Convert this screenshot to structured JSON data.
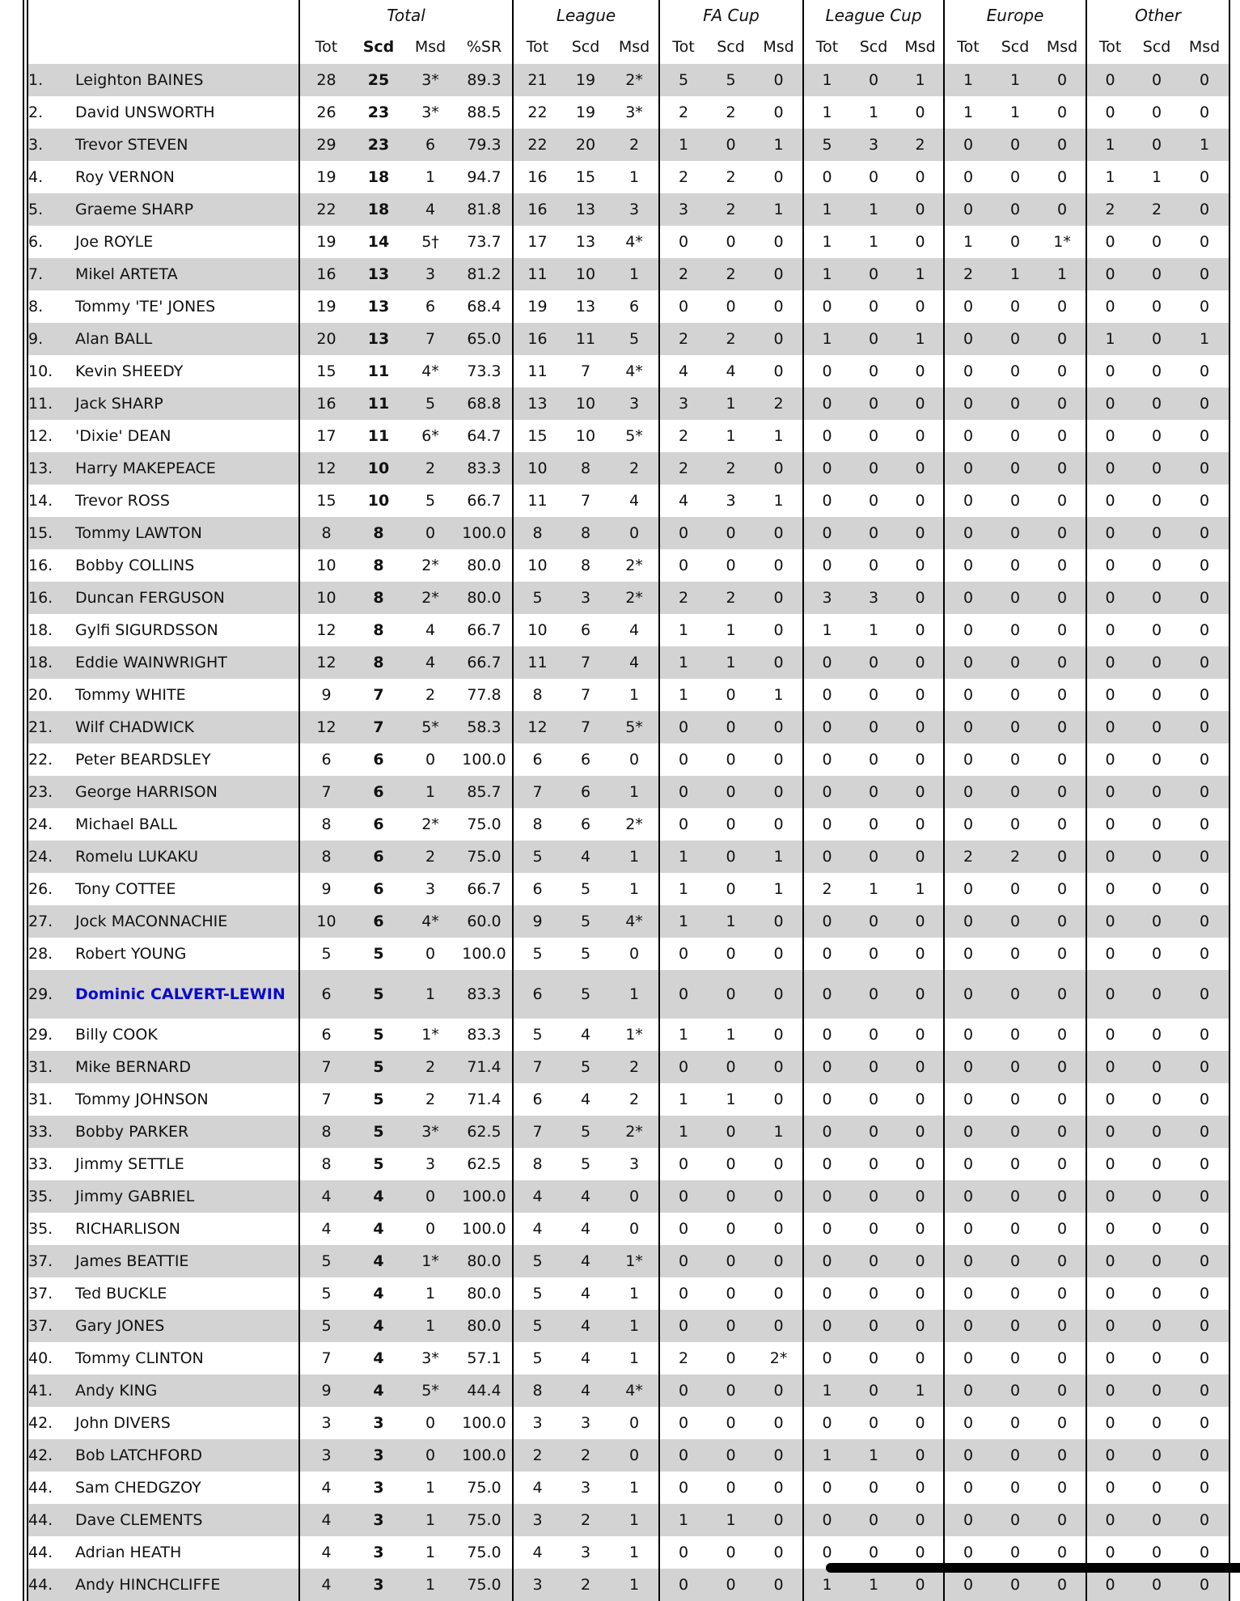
{
  "groups": [
    "Total",
    "League",
    "FA Cup",
    "League Cup",
    "Europe",
    "Other"
  ],
  "total_sub": [
    "Tot",
    "Scd",
    "Msd",
    "%SR"
  ],
  "group_sub": [
    "Tot",
    "Scd",
    "Msd"
  ],
  "highlight_color": "#0a0acc",
  "shade_color": "#d3d3d3",
  "rows": [
    [
      "1.",
      "Leighton BAINES",
      "28",
      "25",
      "3*",
      "89.3",
      "21",
      "19",
      "2*",
      "5",
      "5",
      "0",
      "1",
      "0",
      "1",
      "1",
      "1",
      "0",
      "0",
      "0",
      "0"
    ],
    [
      "2.",
      "David UNSWORTH",
      "26",
      "23",
      "3*",
      "88.5",
      "22",
      "19",
      "3*",
      "2",
      "2",
      "0",
      "1",
      "1",
      "0",
      "1",
      "1",
      "0",
      "0",
      "0",
      "0"
    ],
    [
      "3.",
      "Trevor STEVEN",
      "29",
      "23",
      "6",
      "79.3",
      "22",
      "20",
      "2",
      "1",
      "0",
      "1",
      "5",
      "3",
      "2",
      "0",
      "0",
      "0",
      "1",
      "0",
      "1"
    ],
    [
      "4.",
      "Roy VERNON",
      "19",
      "18",
      "1",
      "94.7",
      "16",
      "15",
      "1",
      "2",
      "2",
      "0",
      "0",
      "0",
      "0",
      "0",
      "0",
      "0",
      "1",
      "1",
      "0"
    ],
    [
      "5.",
      "Graeme SHARP",
      "22",
      "18",
      "4",
      "81.8",
      "16",
      "13",
      "3",
      "3",
      "2",
      "1",
      "1",
      "1",
      "0",
      "0",
      "0",
      "0",
      "2",
      "2",
      "0"
    ],
    [
      "6.",
      "Joe ROYLE",
      "19",
      "14",
      "5†",
      "73.7",
      "17",
      "13",
      "4*",
      "0",
      "0",
      "0",
      "1",
      "1",
      "0",
      "1",
      "0",
      "1*",
      "0",
      "0",
      "0"
    ],
    [
      "7.",
      "Mikel ARTETA",
      "16",
      "13",
      "3",
      "81.2",
      "11",
      "10",
      "1",
      "2",
      "2",
      "0",
      "1",
      "0",
      "1",
      "2",
      "1",
      "1",
      "0",
      "0",
      "0"
    ],
    [
      "8.",
      "Tommy 'TE' JONES",
      "19",
      "13",
      "6",
      "68.4",
      "19",
      "13",
      "6",
      "0",
      "0",
      "0",
      "0",
      "0",
      "0",
      "0",
      "0",
      "0",
      "0",
      "0",
      "0"
    ],
    [
      "9.",
      "Alan BALL",
      "20",
      "13",
      "7",
      "65.0",
      "16",
      "11",
      "5",
      "2",
      "2",
      "0",
      "1",
      "0",
      "1",
      "0",
      "0",
      "0",
      "1",
      "0",
      "1"
    ],
    [
      "10.",
      "Kevin SHEEDY",
      "15",
      "11",
      "4*",
      "73.3",
      "11",
      "7",
      "4*",
      "4",
      "4",
      "0",
      "0",
      "0",
      "0",
      "0",
      "0",
      "0",
      "0",
      "0",
      "0"
    ],
    [
      "11.",
      "Jack SHARP",
      "16",
      "11",
      "5",
      "68.8",
      "13",
      "10",
      "3",
      "3",
      "1",
      "2",
      "0",
      "0",
      "0",
      "0",
      "0",
      "0",
      "0",
      "0",
      "0"
    ],
    [
      "12.",
      "'Dixie' DEAN",
      "17",
      "11",
      "6*",
      "64.7",
      "15",
      "10",
      "5*",
      "2",
      "1",
      "1",
      "0",
      "0",
      "0",
      "0",
      "0",
      "0",
      "0",
      "0",
      "0"
    ],
    [
      "13.",
      "Harry MAKEPEACE",
      "12",
      "10",
      "2",
      "83.3",
      "10",
      "8",
      "2",
      "2",
      "2",
      "0",
      "0",
      "0",
      "0",
      "0",
      "0",
      "0",
      "0",
      "0",
      "0"
    ],
    [
      "14.",
      "Trevor ROSS",
      "15",
      "10",
      "5",
      "66.7",
      "11",
      "7",
      "4",
      "4",
      "3",
      "1",
      "0",
      "0",
      "0",
      "0",
      "0",
      "0",
      "0",
      "0",
      "0"
    ],
    [
      "15.",
      "Tommy LAWTON",
      "8",
      "8",
      "0",
      "100.0",
      "8",
      "8",
      "0",
      "0",
      "0",
      "0",
      "0",
      "0",
      "0",
      "0",
      "0",
      "0",
      "0",
      "0",
      "0"
    ],
    [
      "16.",
      "Bobby COLLINS",
      "10",
      "8",
      "2*",
      "80.0",
      "10",
      "8",
      "2*",
      "0",
      "0",
      "0",
      "0",
      "0",
      "0",
      "0",
      "0",
      "0",
      "0",
      "0",
      "0"
    ],
    [
      "16.",
      "Duncan FERGUSON",
      "10",
      "8",
      "2*",
      "80.0",
      "5",
      "3",
      "2*",
      "2",
      "2",
      "0",
      "3",
      "3",
      "0",
      "0",
      "0",
      "0",
      "0",
      "0",
      "0"
    ],
    [
      "18.",
      "Gylfi SIGURDSSON",
      "12",
      "8",
      "4",
      "66.7",
      "10",
      "6",
      "4",
      "1",
      "1",
      "0",
      "1",
      "1",
      "0",
      "0",
      "0",
      "0",
      "0",
      "0",
      "0"
    ],
    [
      "18.",
      "Eddie WAINWRIGHT",
      "12",
      "8",
      "4",
      "66.7",
      "11",
      "7",
      "4",
      "1",
      "1",
      "0",
      "0",
      "0",
      "0",
      "0",
      "0",
      "0",
      "0",
      "0",
      "0"
    ],
    [
      "20.",
      "Tommy WHITE",
      "9",
      "7",
      "2",
      "77.8",
      "8",
      "7",
      "1",
      "1",
      "0",
      "1",
      "0",
      "0",
      "0",
      "0",
      "0",
      "0",
      "0",
      "0",
      "0"
    ],
    [
      "21.",
      "Wilf CHADWICK",
      "12",
      "7",
      "5*",
      "58.3",
      "12",
      "7",
      "5*",
      "0",
      "0",
      "0",
      "0",
      "0",
      "0",
      "0",
      "0",
      "0",
      "0",
      "0",
      "0"
    ],
    [
      "22.",
      "Peter BEARDSLEY",
      "6",
      "6",
      "0",
      "100.0",
      "6",
      "6",
      "0",
      "0",
      "0",
      "0",
      "0",
      "0",
      "0",
      "0",
      "0",
      "0",
      "0",
      "0",
      "0"
    ],
    [
      "23.",
      "George HARRISON",
      "7",
      "6",
      "1",
      "85.7",
      "7",
      "6",
      "1",
      "0",
      "0",
      "0",
      "0",
      "0",
      "0",
      "0",
      "0",
      "0",
      "0",
      "0",
      "0"
    ],
    [
      "24.",
      "Michael BALL",
      "8",
      "6",
      "2*",
      "75.0",
      "8",
      "6",
      "2*",
      "0",
      "0",
      "0",
      "0",
      "0",
      "0",
      "0",
      "0",
      "0",
      "0",
      "0",
      "0"
    ],
    [
      "24.",
      "Romelu LUKAKU",
      "8",
      "6",
      "2",
      "75.0",
      "5",
      "4",
      "1",
      "1",
      "0",
      "1",
      "0",
      "0",
      "0",
      "2",
      "2",
      "0",
      "0",
      "0",
      "0"
    ],
    [
      "26.",
      "Tony COTTEE",
      "9",
      "6",
      "3",
      "66.7",
      "6",
      "5",
      "1",
      "1",
      "0",
      "1",
      "2",
      "1",
      "1",
      "0",
      "0",
      "0",
      "0",
      "0",
      "0"
    ],
    [
      "27.",
      "Jock MACONNACHIE",
      "10",
      "6",
      "4*",
      "60.0",
      "9",
      "5",
      "4*",
      "1",
      "1",
      "0",
      "0",
      "0",
      "0",
      "0",
      "0",
      "0",
      "0",
      "0",
      "0"
    ],
    [
      "28.",
      "Robert YOUNG",
      "5",
      "5",
      "0",
      "100.0",
      "5",
      "5",
      "0",
      "0",
      "0",
      "0",
      "0",
      "0",
      "0",
      "0",
      "0",
      "0",
      "0",
      "0",
      "0"
    ],
    [
      "29.",
      "Dominic CALVERT-LEWIN",
      "6",
      "5",
      "1",
      "83.3",
      "6",
      "5",
      "1",
      "0",
      "0",
      "0",
      "0",
      "0",
      "0",
      "0",
      "0",
      "0",
      "0",
      "0",
      "0"
    ],
    [
      "29.",
      "Billy COOK",
      "6",
      "5",
      "1*",
      "83.3",
      "5",
      "4",
      "1*",
      "1",
      "1",
      "0",
      "0",
      "0",
      "0",
      "0",
      "0",
      "0",
      "0",
      "0",
      "0"
    ],
    [
      "31.",
      "Mike BERNARD",
      "7",
      "5",
      "2",
      "71.4",
      "7",
      "5",
      "2",
      "0",
      "0",
      "0",
      "0",
      "0",
      "0",
      "0",
      "0",
      "0",
      "0",
      "0",
      "0"
    ],
    [
      "31.",
      "Tommy JOHNSON",
      "7",
      "5",
      "2",
      "71.4",
      "6",
      "4",
      "2",
      "1",
      "1",
      "0",
      "0",
      "0",
      "0",
      "0",
      "0",
      "0",
      "0",
      "0",
      "0"
    ],
    [
      "33.",
      "Bobby PARKER",
      "8",
      "5",
      "3*",
      "62.5",
      "7",
      "5",
      "2*",
      "1",
      "0",
      "1",
      "0",
      "0",
      "0",
      "0",
      "0",
      "0",
      "0",
      "0",
      "0"
    ],
    [
      "33.",
      "Jimmy SETTLE",
      "8",
      "5",
      "3",
      "62.5",
      "8",
      "5",
      "3",
      "0",
      "0",
      "0",
      "0",
      "0",
      "0",
      "0",
      "0",
      "0",
      "0",
      "0",
      "0"
    ],
    [
      "35.",
      "Jimmy GABRIEL",
      "4",
      "4",
      "0",
      "100.0",
      "4",
      "4",
      "0",
      "0",
      "0",
      "0",
      "0",
      "0",
      "0",
      "0",
      "0",
      "0",
      "0",
      "0",
      "0"
    ],
    [
      "35.",
      "RICHARLISON",
      "4",
      "4",
      "0",
      "100.0",
      "4",
      "4",
      "0",
      "0",
      "0",
      "0",
      "0",
      "0",
      "0",
      "0",
      "0",
      "0",
      "0",
      "0",
      "0"
    ],
    [
      "37.",
      "James BEATTIE",
      "5",
      "4",
      "1*",
      "80.0",
      "5",
      "4",
      "1*",
      "0",
      "0",
      "0",
      "0",
      "0",
      "0",
      "0",
      "0",
      "0",
      "0",
      "0",
      "0"
    ],
    [
      "37.",
      "Ted BUCKLE",
      "5",
      "4",
      "1",
      "80.0",
      "5",
      "4",
      "1",
      "0",
      "0",
      "0",
      "0",
      "0",
      "0",
      "0",
      "0",
      "0",
      "0",
      "0",
      "0"
    ],
    [
      "37.",
      "Gary JONES",
      "5",
      "4",
      "1",
      "80.0",
      "5",
      "4",
      "1",
      "0",
      "0",
      "0",
      "0",
      "0",
      "0",
      "0",
      "0",
      "0",
      "0",
      "0",
      "0"
    ],
    [
      "40.",
      "Tommy CLINTON",
      "7",
      "4",
      "3*",
      "57.1",
      "5",
      "4",
      "1",
      "2",
      "0",
      "2*",
      "0",
      "0",
      "0",
      "0",
      "0",
      "0",
      "0",
      "0",
      "0"
    ],
    [
      "41.",
      "Andy KING",
      "9",
      "4",
      "5*",
      "44.4",
      "8",
      "4",
      "4*",
      "0",
      "0",
      "0",
      "1",
      "0",
      "1",
      "0",
      "0",
      "0",
      "0",
      "0",
      "0"
    ],
    [
      "42.",
      "John DIVERS",
      "3",
      "3",
      "0",
      "100.0",
      "3",
      "3",
      "0",
      "0",
      "0",
      "0",
      "0",
      "0",
      "0",
      "0",
      "0",
      "0",
      "0",
      "0",
      "0"
    ],
    [
      "42.",
      "Bob LATCHFORD",
      "3",
      "3",
      "0",
      "100.0",
      "2",
      "2",
      "0",
      "0",
      "0",
      "0",
      "1",
      "1",
      "0",
      "0",
      "0",
      "0",
      "0",
      "0",
      "0"
    ],
    [
      "44.",
      "Sam CHEDGZOY",
      "4",
      "3",
      "1",
      "75.0",
      "4",
      "3",
      "1",
      "0",
      "0",
      "0",
      "0",
      "0",
      "0",
      "0",
      "0",
      "0",
      "0",
      "0",
      "0"
    ],
    [
      "44.",
      "Dave CLEMENTS",
      "4",
      "3",
      "1",
      "75.0",
      "3",
      "2",
      "1",
      "1",
      "1",
      "0",
      "0",
      "0",
      "0",
      "0",
      "0",
      "0",
      "0",
      "0",
      "0"
    ],
    [
      "44.",
      "Adrian HEATH",
      "4",
      "3",
      "1",
      "75.0",
      "4",
      "3",
      "1",
      "0",
      "0",
      "0",
      "0",
      "0",
      "0",
      "0",
      "0",
      "0",
      "0",
      "0",
      "0"
    ],
    [
      "44.",
      "Andy HINCHCLIFFE",
      "4",
      "3",
      "1",
      "75.0",
      "3",
      "2",
      "1",
      "0",
      "0",
      "0",
      "1",
      "1",
      "0",
      "0",
      "0",
      "0",
      "0",
      "0",
      "0"
    ]
  ],
  "highlighted_player": "Dominic CALVERT-LEWIN"
}
